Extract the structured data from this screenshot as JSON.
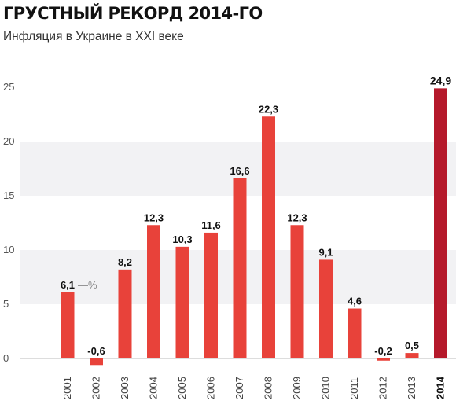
{
  "header": {
    "title": "ГРУСТНЫЙ РЕКОРД 2014-ГО",
    "subtitle": "Инфляция в Украине в XXI веке"
  },
  "chart_data": {
    "type": "bar",
    "title": "ГРУСТНЫЙ РЕКОРД 2014-ГО",
    "subtitle": "Инфляция в Украине в XXI веке",
    "categories": [
      "2001",
      "2002",
      "2003",
      "2004",
      "2005",
      "2006",
      "2007",
      "2008",
      "2009",
      "2010",
      "2011",
      "2012",
      "2013",
      "2014"
    ],
    "values": [
      6.1,
      -0.6,
      8.2,
      12.3,
      10.3,
      11.6,
      16.6,
      22.3,
      12.3,
      9.1,
      4.6,
      -0.2,
      0.5,
      24.9
    ],
    "value_labels": [
      "6,1",
      "-0,6",
      "8,2",
      "12,3",
      "10,3",
      "11,6",
      "16,6",
      "22,3",
      "12,3",
      "9,1",
      "4,6",
      "-0,2",
      "0,5",
      "24,9"
    ],
    "unit_label": "—%",
    "highlight": "2014",
    "yticks": [
      0,
      5,
      10,
      15,
      20,
      25
    ],
    "ylim": [
      -0.6,
      25
    ],
    "grid": "alternating horizontal bands",
    "colors": {
      "bar": "#e8423a",
      "highlight": "#b5192b",
      "band": "#f2f2f4",
      "axis": "#bbbbbb"
    }
  }
}
